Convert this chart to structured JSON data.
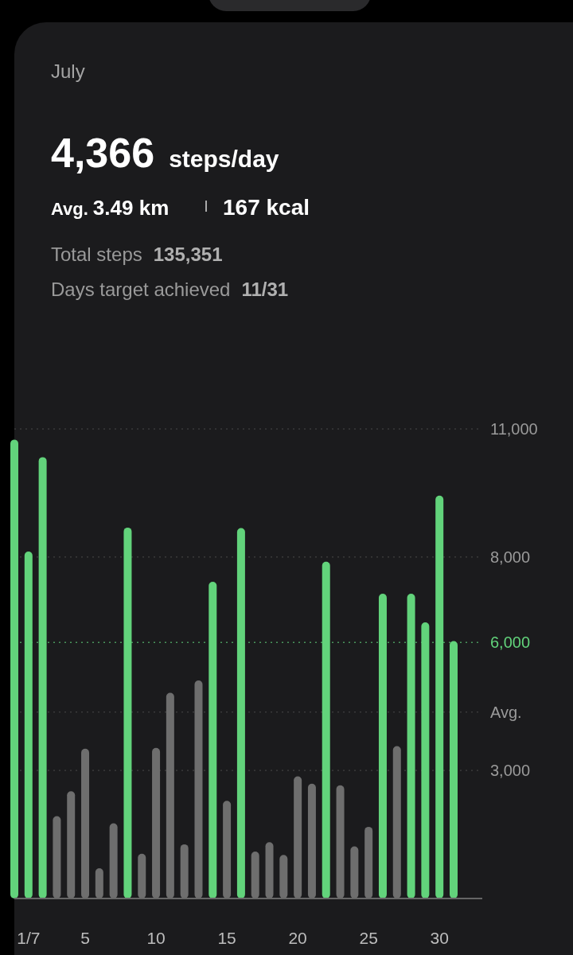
{
  "chart_data": {
    "type": "bar",
    "title": "July",
    "subtitle": "4,366 steps/day",
    "annotations": [
      "Avg. 3.49 km",
      "167 kcal",
      "Total steps 135,351",
      "Days target achieved 11/31"
    ],
    "categories": [
      null,
      "1/7",
      null,
      null,
      null,
      "5",
      null,
      null,
      null,
      null,
      "10",
      null,
      null,
      null,
      null,
      "15",
      null,
      null,
      null,
      null,
      "20",
      null,
      null,
      null,
      null,
      "25",
      null,
      null,
      null,
      null,
      "30",
      null
    ],
    "values": [
      10750,
      8130,
      10340,
      1930,
      2510,
      3510,
      710,
      1760,
      8690,
      1050,
      3530,
      4820,
      1270,
      5110,
      7420,
      2290,
      8680,
      1100,
      1320,
      1020,
      2860,
      2690,
      7890,
      2650,
      1220,
      1680,
      7140,
      3570,
      7140,
      6470,
      9440,
      6030
    ],
    "colors": [
      "#62d37b",
      "#62d37b",
      "#62d37b",
      "#6e6e6e",
      "#6e6e6e",
      "#6e6e6e",
      "#6e6e6e",
      "#6e6e6e",
      "#62d37b",
      "#6e6e6e",
      "#6e6e6e",
      "#6e6e6e",
      "#6e6e6e",
      "#6e6e6e",
      "#62d37b",
      "#6e6e6e",
      "#62d37b",
      "#6e6e6e",
      "#6e6e6e",
      "#6e6e6e",
      "#6e6e6e",
      "#6e6e6e",
      "#62d37b",
      "#6e6e6e",
      "#6e6e6e",
      "#6e6e6e",
      "#62d37b",
      "#6e6e6e",
      "#62d37b",
      "#62d37b",
      "#62d37b",
      "#62d37b"
    ],
    "ylim": [
      0,
      11000
    ],
    "yticks": [
      {
        "value": 3000,
        "label": "3,000"
      },
      {
        "value": 4366,
        "label": "Avg."
      },
      {
        "value": 8000,
        "label": "8,000"
      },
      {
        "value": 11000,
        "label": "11,000"
      }
    ],
    "ref_lines": [
      {
        "axis": "y",
        "value": 6000,
        "label": "6,000",
        "color": "#62d37b",
        "line_style": "dotted"
      }
    ],
    "grid": "y"
  }
}
